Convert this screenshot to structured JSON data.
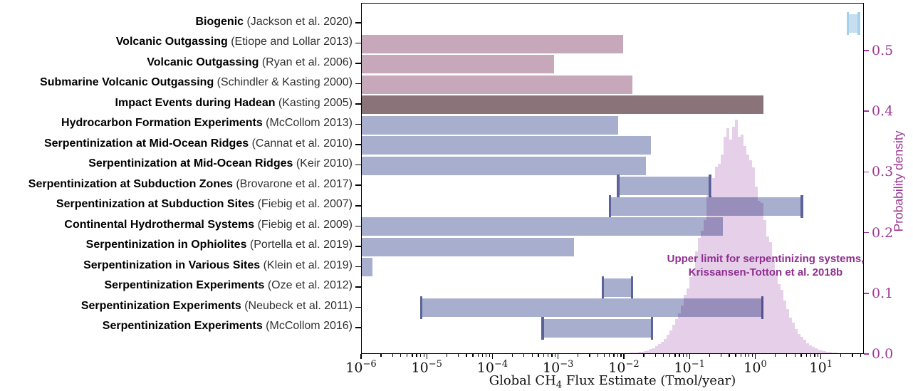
{
  "chart_data": {
    "type": "bar",
    "orientation": "horizontal",
    "x_scale": "log",
    "title": "",
    "xlabel_parts": {
      "pre": "Global CH",
      "sub": "4",
      "post": " Flux Estimate (Tmol/year)"
    },
    "xlim": [
      1e-06,
      45
    ],
    "x_tick_exponents": [
      -6,
      -5,
      -4,
      -3,
      -2,
      -1,
      0,
      1
    ],
    "right_axis": {
      "label": "Probability density",
      "ticks": [
        "0.0",
        "0.1",
        "0.2",
        "0.3",
        "0.4",
        "0.5"
      ],
      "tick_values": [
        0.0,
        0.1,
        0.2,
        0.3,
        0.4,
        0.5
      ],
      "lim": [
        0,
        0.57
      ]
    },
    "bars": [
      {
        "name": "Biogenic",
        "cite": "(Jackson et al. 2020)",
        "min": 25,
        "max": 37,
        "style": "biogenic",
        "caps": true
      },
      {
        "name": "Volcanic Outgassing",
        "cite": "(Etiope and Lollar 2013)",
        "min": 1e-06,
        "max": 0.0095,
        "style": "volcanic",
        "caps": false
      },
      {
        "name": "Volcanic Outgassing",
        "cite": "(Ryan et al. 2006)",
        "min": 1e-06,
        "max": 0.00085,
        "style": "volcanic",
        "caps": false
      },
      {
        "name": "Submarine Volcanic Outgassing",
        "cite": "(Schindler & Kasting 2000)",
        "min": 1e-06,
        "max": 0.013,
        "style": "volcanic",
        "caps": false
      },
      {
        "name": "Impact Events during Hadean",
        "cite": "(Kasting 2005)",
        "min": 1e-06,
        "max": 1.3,
        "style": "impact",
        "caps": false
      },
      {
        "name": "Hydrocarbon Formation Experiments",
        "cite": "(McCollom 2013)",
        "min": 1e-06,
        "max": 0.008,
        "style": "serp",
        "caps": false
      },
      {
        "name": "Serpentinization at Mid-Ocean Ridges",
        "cite": "(Cannat et al. 2010)",
        "min": 1e-06,
        "max": 0.025,
        "style": "serp",
        "caps": false
      },
      {
        "name": "Serpentinization at Mid-Ocean Ridges",
        "cite": "(Keir 2010)",
        "min": 1e-06,
        "max": 0.021,
        "style": "serp",
        "caps": false
      },
      {
        "name": "Serpentinization at Subduction Zones",
        "cite": "(Brovarone et al. 2017)",
        "min": 0.008,
        "max": 0.2,
        "style": "serp",
        "caps": true
      },
      {
        "name": "Serpentinization at Subduction Sites",
        "cite": "(Fiebig et al. 2007)",
        "min": 0.006,
        "max": 5.0,
        "style": "serp",
        "caps": true
      },
      {
        "name": "Continental Hydrothermal Systems",
        "cite": "(Fiebig et al. 2009)",
        "min": 1e-06,
        "max": 0.31,
        "style": "serp",
        "caps": false
      },
      {
        "name": "Serpentinization in Ophiolites",
        "cite": "(Portella et al. 2019)",
        "min": 1e-06,
        "max": 0.0017,
        "style": "serp",
        "caps": false
      },
      {
        "name": "Serpentinization in Various Sites",
        "cite": "(Klein et al. 2019)",
        "min": 1e-06,
        "max": 1.45e-06,
        "style": "serp",
        "caps": false
      },
      {
        "name": "Serpentinization Experiments",
        "cite": "(Oze et al. 2012)",
        "min": 0.0047,
        "max": 0.013,
        "style": "serp",
        "caps": true
      },
      {
        "name": "Serpentinization Experiments",
        "cite": "(Neubeck et al. 2011)",
        "min": 8e-06,
        "max": 1.25,
        "style": "serp",
        "caps": true
      },
      {
        "name": "Serpentinization Experiments",
        "cite": "(McCollom 2016)",
        "min": 0.00057,
        "max": 0.026,
        "style": "serp",
        "caps": true
      }
    ],
    "density": {
      "annotation_line1": "Upper limit for serpentinizing systems,",
      "annotation_line2": "Krissansen-Totton et al. 2018b",
      "log10_mean": -0.33,
      "log10_sigma": 0.45,
      "peak_density": 0.37
    },
    "colors": {
      "volcanic_fill": "#c7a8bb",
      "impact_fill": "#8b737a",
      "serp_fill": "#a8aece",
      "serp_cap": "#5c6399",
      "biogenic_fill": "#c5dff0",
      "biogenic_cap": "#a6d1e9",
      "density_fill": "#e6d0e9",
      "annotation_purple": "#8e2f8e",
      "axis_purple": "#9a3a94"
    }
  }
}
